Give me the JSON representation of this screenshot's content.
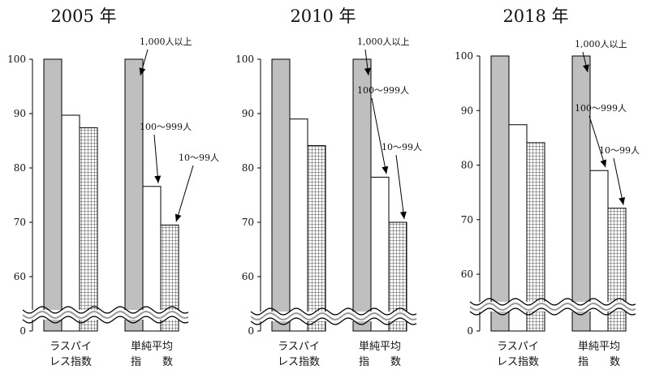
{
  "chart_data": [
    {
      "type": "bar",
      "title": "2005 年",
      "categories": [
        "ラスパイレス指数",
        "単純平均指数"
      ],
      "category_lines": [
        [
          "ラスパイ",
          "レス指数"
        ],
        [
          "単純平均",
          "指　　数"
        ]
      ],
      "series": [
        {
          "name": "1,000人以上",
          "values": [
            100,
            100
          ]
        },
        {
          "name": "100～999人",
          "values": [
            89.7,
            76.6
          ]
        },
        {
          "name": "10～99人",
          "values": [
            87.4,
            69.5
          ]
        }
      ],
      "yticks": [
        0,
        60,
        70,
        80,
        90,
        100
      ],
      "ylim": [
        55,
        100
      ],
      "axis_break": true
    },
    {
      "type": "bar",
      "title": "2010 年",
      "categories": [
        "ラスパイレス指数",
        "単純平均指数"
      ],
      "category_lines": [
        [
          "ラスパイ",
          "レス指数"
        ],
        [
          "単純平均",
          "指　　数"
        ]
      ],
      "series": [
        {
          "name": "1,000人以上",
          "values": [
            100,
            100
          ]
        },
        {
          "name": "100～999人",
          "values": [
            89.0,
            78.3
          ]
        },
        {
          "name": "10～99人",
          "values": [
            84.1,
            70.0
          ]
        }
      ],
      "yticks": [
        0,
        60,
        70,
        80,
        90,
        100
      ],
      "ylim": [
        55,
        100
      ],
      "axis_break": true
    },
    {
      "type": "bar",
      "title": "2018 年",
      "categories": [
        "ラスパイレス指数",
        "単純平均指数"
      ],
      "category_lines": [
        [
          "ラスパイ",
          "レス指数"
        ],
        [
          "単純平均",
          "指　　数"
        ]
      ],
      "series": [
        {
          "name": "1,000人以上",
          "values": [
            100,
            100
          ]
        },
        {
          "name": "100～999人",
          "values": [
            87.4,
            79.0
          ]
        },
        {
          "name": "10～99人",
          "values": [
            84.1,
            72.1
          ]
        }
      ],
      "yticks": [
        0,
        60,
        70,
        80,
        90,
        100
      ],
      "ylim": [
        55,
        100
      ],
      "axis_break": true
    }
  ],
  "colors": {
    "large": "#bfbfbf",
    "medium": "#ffffff",
    "small_grid": "#222222",
    "axis": "#000000"
  }
}
